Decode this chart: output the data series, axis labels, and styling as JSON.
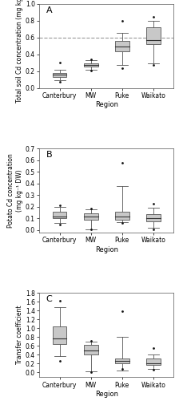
{
  "categories": [
    "Canterbury",
    "MW",
    "Puke",
    "Waikato"
  ],
  "panel_A": {
    "title": "A",
    "ylabel": "Total soil Cd concentration (mg kg⁻¹)",
    "xlabel": "Region",
    "ylim": [
      0.0,
      1.0
    ],
    "yticks": [
      0.0,
      0.2,
      0.4,
      0.6,
      0.8,
      1.0
    ],
    "dashed_line": 0.6,
    "boxes": [
      {
        "q1": 0.13,
        "median": 0.155,
        "q3": 0.175,
        "whislo": 0.09,
        "whishi": 0.22,
        "p5": 0.07,
        "p95": 0.3
      },
      {
        "q1": 0.255,
        "median": 0.27,
        "q3": 0.29,
        "whislo": 0.22,
        "whishi": 0.33,
        "p5": 0.21,
        "p95": 0.34
      },
      {
        "q1": 0.44,
        "median": 0.49,
        "q3": 0.565,
        "whislo": 0.27,
        "whishi": 0.66,
        "p5": 0.24,
        "p95": 0.8
      },
      {
        "q1": 0.52,
        "median": 0.57,
        "q3": 0.72,
        "whislo": 0.29,
        "whishi": 0.8,
        "p5": 0.27,
        "p95": 0.85
      }
    ]
  },
  "panel_B": {
    "title": "B",
    "ylabel": "Potato Cd concentration\n(mg kg⁻¹ DW)",
    "xlabel": "Region",
    "ylim": [
      -0.02,
      0.7
    ],
    "yticks": [
      0.0,
      0.1,
      0.2,
      0.3,
      0.4,
      0.5,
      0.6,
      0.7
    ],
    "boxes": [
      {
        "q1": 0.1,
        "median": 0.12,
        "q3": 0.155,
        "whislo": 0.06,
        "whishi": 0.2,
        "p5": 0.05,
        "p95": 0.21
      },
      {
        "q1": 0.09,
        "median": 0.12,
        "q3": 0.145,
        "whislo": 0.01,
        "whishi": 0.18,
        "p5": 0.005,
        "p95": 0.185
      },
      {
        "q1": 0.09,
        "median": 0.115,
        "q3": 0.155,
        "whislo": 0.07,
        "whishi": 0.38,
        "p5": 0.065,
        "p95": 0.58
      },
      {
        "q1": 0.075,
        "median": 0.105,
        "q3": 0.135,
        "whislo": 0.02,
        "whishi": 0.195,
        "p5": 0.01,
        "p95": 0.23
      }
    ]
  },
  "panel_C": {
    "title": "C",
    "ylabel": "Transfer coefficient",
    "xlabel": "Region",
    "ylim": [
      -0.1,
      1.8
    ],
    "yticks": [
      0.0,
      0.2,
      0.4,
      0.6,
      0.8,
      1.0,
      1.2,
      1.4,
      1.6,
      1.8
    ],
    "boxes": [
      {
        "q1": 0.65,
        "median": 0.77,
        "q3": 1.05,
        "whislo": 0.38,
        "whishi": 1.47,
        "p5": 0.27,
        "p95": 1.62
      },
      {
        "q1": 0.4,
        "median": 0.49,
        "q3": 0.63,
        "whislo": 0.03,
        "whishi": 0.7,
        "p5": 0.01,
        "p95": 0.71
      },
      {
        "q1": 0.21,
        "median": 0.255,
        "q3": 0.31,
        "whislo": 0.04,
        "whishi": 0.8,
        "p5": 0.085,
        "p95": 1.38
      },
      {
        "q1": 0.165,
        "median": 0.215,
        "q3": 0.315,
        "whislo": 0.09,
        "whishi": 0.4,
        "p5": 0.07,
        "p95": 0.56
      }
    ]
  },
  "box_color": "#c8c8c8",
  "box_edge_color": "#555555",
  "median_color": "#333333",
  "whisker_color": "#555555",
  "flier_color": "#111111",
  "dashed_color": "#999999",
  "bg_color": "#ffffff",
  "panel_bg": "#ffffff"
}
